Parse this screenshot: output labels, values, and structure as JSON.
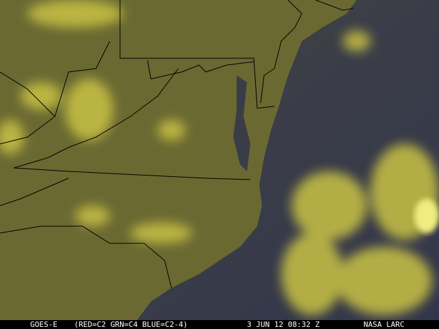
{
  "image": {
    "description_type": "satellite-imagery",
    "colors": {
      "land": "#6b6a32",
      "ocean": "#383b4a",
      "cloud": "#c9c244",
      "borders": "#000000"
    }
  },
  "caption": {
    "satellite": "GOES-E",
    "channels": "(RED=C2 GRN=C4 BLUE=C2-4)",
    "datetime": "3 JUN 12 08:32 Z",
    "source": "NASA LARC"
  }
}
